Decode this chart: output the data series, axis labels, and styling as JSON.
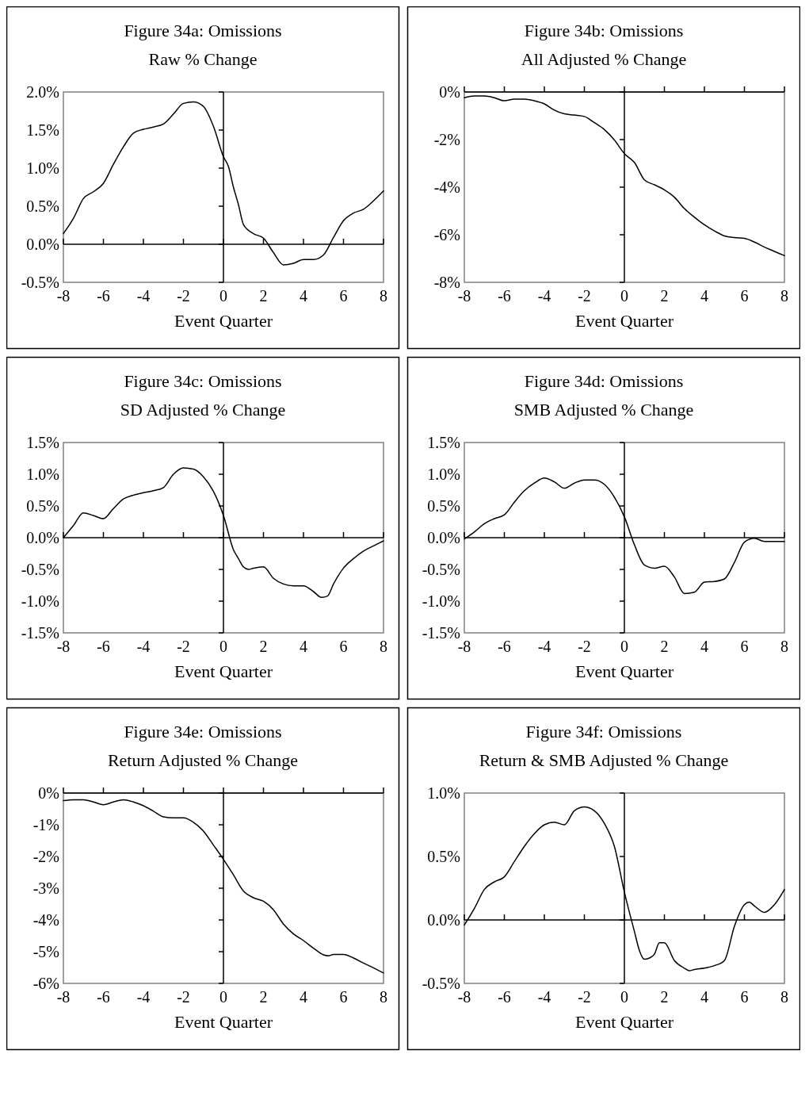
{
  "chart_data": [
    {
      "type": "line",
      "title": "Figure 34a: Omissions",
      "subtitle": "Raw % Change",
      "xlabel": "Event Quarter",
      "color": "#000000",
      "x": [
        -8,
        -7.5,
        -7,
        -6.5,
        -6,
        -5.5,
        -5,
        -4.5,
        -4,
        -3.5,
        -3,
        -2.5,
        -2,
        -1.5,
        -1,
        -0.5,
        0,
        0.25,
        0.5,
        0.75,
        1,
        1.5,
        2,
        2.5,
        3,
        3.5,
        4,
        4.5,
        5,
        5.5,
        6,
        6.5,
        7,
        7.5,
        8
      ],
      "values": [
        0.14,
        0.34,
        0.6,
        0.69,
        0.8,
        1.05,
        1.28,
        1.46,
        1.51,
        1.54,
        1.58,
        1.71,
        1.85,
        1.87,
        1.81,
        1.55,
        1.15,
        1.02,
        0.75,
        0.52,
        0.26,
        0.14,
        0.08,
        -0.11,
        -0.27,
        -0.25,
        -0.2,
        -0.2,
        -0.14,
        0.09,
        0.31,
        0.41,
        0.46,
        0.57,
        0.7
      ],
      "xlim": [
        -8,
        8
      ],
      "ylim": [
        -0.5,
        2
      ],
      "xticks": [
        -8,
        -6,
        -4,
        -2,
        0,
        2,
        4,
        6,
        8
      ],
      "yticks": [
        {
          "value": -0.5,
          "label": "-0.5%"
        },
        {
          "value": 0,
          "label": "0.0%"
        },
        {
          "value": 0.5,
          "label": "0.5%"
        },
        {
          "value": 1,
          "label": "1.0%"
        },
        {
          "value": 1.5,
          "label": "1.5%"
        },
        {
          "value": 2,
          "label": "2.0%"
        }
      ]
    },
    {
      "type": "line",
      "title": "Figure 34b: Omissions",
      "subtitle": "All Adjusted % Change",
      "xlabel": "Event Quarter",
      "color": "#000000",
      "x": [
        -8,
        -7.5,
        -7,
        -6.5,
        -6,
        -5.5,
        -5,
        -4.5,
        -4,
        -3.5,
        -3,
        -2.5,
        -2,
        -1.5,
        -1,
        -0.5,
        0,
        0.5,
        1,
        1.5,
        2,
        2.5,
        3,
        3.5,
        4,
        4.5,
        5,
        5.5,
        6,
        6.5,
        7,
        7.5,
        8
      ],
      "values": [
        -0.24,
        -0.17,
        -0.17,
        -0.24,
        -0.37,
        -0.3,
        -0.3,
        -0.37,
        -0.5,
        -0.76,
        -0.92,
        -0.97,
        -1.03,
        -1.29,
        -1.58,
        -2.02,
        -2.59,
        -2.96,
        -3.69,
        -3.9,
        -4.11,
        -4.42,
        -4.9,
        -5.26,
        -5.58,
        -5.84,
        -6.05,
        -6.12,
        -6.15,
        -6.31,
        -6.52,
        -6.7,
        -6.88
      ],
      "xlim": [
        -8,
        8
      ],
      "ylim": [
        -8,
        0
      ],
      "xticks": [
        -8,
        -6,
        -4,
        -2,
        0,
        2,
        4,
        6,
        8
      ],
      "yticks": [
        {
          "value": -8,
          "label": "-8%"
        },
        {
          "value": -6,
          "label": "-6%"
        },
        {
          "value": -4,
          "label": "-4%"
        },
        {
          "value": -2,
          "label": "-2%"
        },
        {
          "value": 0,
          "label": "0%"
        }
      ]
    },
    {
      "type": "line",
      "title": "Figure 34c: Omissions",
      "subtitle": "SD Adjusted % Change",
      "xlabel": "Event Quarter",
      "color": "#000000",
      "x": [
        -8,
        -7.5,
        -7,
        -6.5,
        -6,
        -5.5,
        -5,
        -4.5,
        -4,
        -3.5,
        -3,
        -2.5,
        -2,
        -1.5,
        -1,
        -0.5,
        0,
        0.5,
        0.75,
        1,
        1.25,
        1.5,
        2,
        2.5,
        3,
        3.5,
        4,
        4.5,
        4.9,
        5.2,
        5.5,
        6,
        6.5,
        7,
        7.5,
        8
      ],
      "values": [
        0,
        0.19,
        0.39,
        0.35,
        0.3,
        0.46,
        0.61,
        0.67,
        0.71,
        0.74,
        0.79,
        1,
        1.1,
        1.08,
        0.96,
        0.73,
        0.35,
        -0.19,
        -0.33,
        -0.46,
        -0.5,
        -0.48,
        -0.46,
        -0.64,
        -0.73,
        -0.76,
        -0.76,
        -0.85,
        -0.94,
        -0.92,
        -0.73,
        -0.48,
        -0.33,
        -0.21,
        -0.13,
        -0.05
      ],
      "xlim": [
        -8,
        8
      ],
      "ylim": [
        -1.5,
        1.5
      ],
      "xticks": [
        -8,
        -6,
        -4,
        -2,
        0,
        2,
        4,
        6,
        8
      ],
      "yticks": [
        {
          "value": -1.5,
          "label": "-1.5%"
        },
        {
          "value": -1,
          "label": "-1.0%"
        },
        {
          "value": -0.5,
          "label": "-0.5%"
        },
        {
          "value": 0,
          "label": "0.0%"
        },
        {
          "value": 0.5,
          "label": "0.5%"
        },
        {
          "value": 1,
          "label": "1.0%"
        },
        {
          "value": 1.5,
          "label": "1.5%"
        }
      ]
    },
    {
      "type": "line",
      "title": "Figure 34d: Omissions",
      "subtitle": "SMB Adjusted % Change",
      "xlabel": "Event Quarter",
      "color": "#000000",
      "x": [
        -8,
        -7.5,
        -7,
        -6.5,
        -6,
        -5.5,
        -5,
        -4.5,
        -4,
        -3.5,
        -3,
        -2.5,
        -2,
        -1.5,
        -1,
        -0.5,
        0,
        0.5,
        1,
        1.5,
        2,
        2.5,
        3,
        3.5,
        4,
        4.5,
        5,
        5.5,
        6,
        6.5,
        7,
        7.5,
        8
      ],
      "values": [
        -0.02,
        0.09,
        0.22,
        0.3,
        0.36,
        0.56,
        0.74,
        0.86,
        0.94,
        0.88,
        0.78,
        0.86,
        0.91,
        0.91,
        0.84,
        0.64,
        0.33,
        -0.11,
        -0.43,
        -0.48,
        -0.45,
        -0.62,
        -0.88,
        -0.86,
        -0.7,
        -0.69,
        -0.65,
        -0.39,
        -0.07,
        -0.01,
        -0.06,
        -0.06,
        -0.06
      ],
      "xlim": [
        -8,
        8
      ],
      "ylim": [
        -1.5,
        1.5
      ],
      "xticks": [
        -8,
        -6,
        -4,
        -2,
        0,
        2,
        4,
        6,
        8
      ],
      "yticks": [
        {
          "value": -1.5,
          "label": "-1.5%"
        },
        {
          "value": -1,
          "label": "-1.0%"
        },
        {
          "value": -0.5,
          "label": "-0.5%"
        },
        {
          "value": 0,
          "label": "0.0%"
        },
        {
          "value": 0.5,
          "label": "0.5%"
        },
        {
          "value": 1,
          "label": "1.0%"
        },
        {
          "value": 1.5,
          "label": "1.5%"
        }
      ]
    },
    {
      "type": "line",
      "title": "Figure 34e: Omissions",
      "subtitle": "Return Adjusted % Change",
      "xlabel": "Event Quarter",
      "color": "#000000",
      "x": [
        -8,
        -7.5,
        -7,
        -6.5,
        -6,
        -5.5,
        -5,
        -4.5,
        -4,
        -3.5,
        -3,
        -2.5,
        -2,
        -1.5,
        -1,
        -0.5,
        0,
        0.5,
        1,
        1.5,
        2,
        2.5,
        3,
        3.5,
        4,
        4.5,
        5,
        5.25,
        5.5,
        6,
        6.5,
        7,
        7.5,
        8
      ],
      "values": [
        -0.24,
        -0.21,
        -0.21,
        -0.28,
        -0.37,
        -0.28,
        -0.21,
        -0.28,
        -0.4,
        -0.57,
        -0.75,
        -0.78,
        -0.78,
        -0.92,
        -1.2,
        -1.64,
        -2.09,
        -2.58,
        -3.09,
        -3.3,
        -3.41,
        -3.68,
        -4.13,
        -4.44,
        -4.65,
        -4.89,
        -5.1,
        -5.13,
        -5.09,
        -5.09,
        -5.2,
        -5.36,
        -5.51,
        -5.67
      ],
      "xlim": [
        -8,
        8
      ],
      "ylim": [
        -6,
        0
      ],
      "xticks": [
        -8,
        -6,
        -4,
        -2,
        0,
        2,
        4,
        6,
        8
      ],
      "yticks": [
        {
          "value": -6,
          "label": "-6%"
        },
        {
          "value": -5,
          "label": "-5%"
        },
        {
          "value": -4,
          "label": "-4%"
        },
        {
          "value": -3,
          "label": "-3%"
        },
        {
          "value": -2,
          "label": "-2%"
        },
        {
          "value": -1,
          "label": "-1%"
        },
        {
          "value": 0,
          "label": "0%"
        }
      ]
    },
    {
      "type": "line",
      "title": "Figure 34f: Omissions",
      "subtitle": "Return & SMB Adjusted % Change",
      "xlabel": "Event Quarter",
      "color": "#000000",
      "x": [
        -8,
        -7.5,
        -7,
        -6.5,
        -6,
        -5.5,
        -5,
        -4.5,
        -4,
        -3.5,
        -3,
        -2.5,
        -2,
        -1.5,
        -1,
        -0.5,
        0,
        0.5,
        0.75,
        1,
        1.25,
        1.5,
        1.75,
        2,
        2.5,
        3,
        3.25,
        3.5,
        4,
        4.5,
        5,
        5.5,
        6,
        6.25,
        6.5,
        7,
        7.5,
        8
      ],
      "values": [
        -0.04,
        0.09,
        0.24,
        0.3,
        0.34,
        0.46,
        0.58,
        0.68,
        0.75,
        0.77,
        0.75,
        0.86,
        0.89,
        0.86,
        0.76,
        0.58,
        0.22,
        -0.09,
        -0.24,
        -0.31,
        -0.3,
        -0.27,
        -0.18,
        -0.18,
        -0.32,
        -0.38,
        -0.4,
        -0.39,
        -0.38,
        -0.36,
        -0.32,
        -0.05,
        0.12,
        0.14,
        0.11,
        0.06,
        0.12,
        0.24
      ],
      "xlim": [
        -8,
        8
      ],
      "ylim": [
        -0.5,
        1
      ],
      "xticks": [
        -8,
        -6,
        -4,
        -2,
        0,
        2,
        4,
        6,
        8
      ],
      "yticks": [
        {
          "value": -0.5,
          "label": "-0.5%"
        },
        {
          "value": 0,
          "label": "0.0%"
        },
        {
          "value": 0.5,
          "label": "0.5%"
        },
        {
          "value": 1,
          "label": "1.0%"
        }
      ]
    }
  ]
}
